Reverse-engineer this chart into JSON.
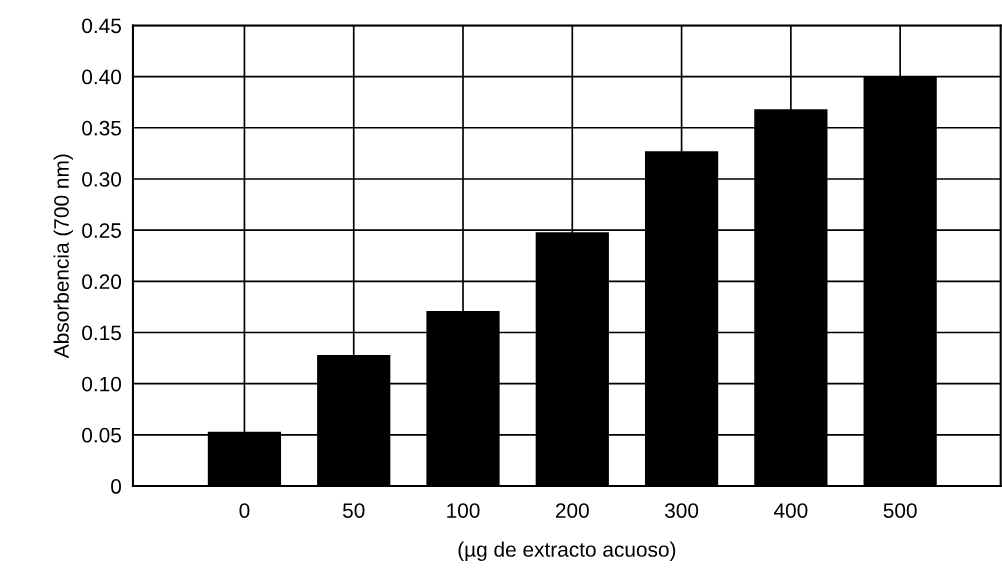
{
  "chart_data": {
    "type": "bar",
    "xlabel": "(µg de extracto acuoso)",
    "ylabel": "Absorbencia (700 nm)",
    "categories": [
      "0",
      "50",
      "100",
      "200",
      "300",
      "400",
      "500"
    ],
    "values": [
      0.053,
      0.128,
      0.171,
      0.248,
      0.327,
      0.368,
      0.4
    ],
    "color": "#000000",
    "ylim": [
      0,
      0.45
    ],
    "yticks": [
      0,
      {
        "value": 0.05,
        "label": "0.05"
      },
      {
        "value": 0.1,
        "label": "0.10"
      },
      {
        "value": 0.15,
        "label": "0.15"
      },
      {
        "value": 0.2,
        "label": "0.20"
      },
      {
        "value": 0.25,
        "label": "0.25"
      },
      {
        "value": 0.3,
        "label": "0.30"
      },
      {
        "value": 0.35,
        "label": "0.35"
      },
      {
        "value": 0.4,
        "label": "0.40"
      },
      {
        "value": 0.45,
        "label": "0.45"
      }
    ],
    "grid": true
  }
}
